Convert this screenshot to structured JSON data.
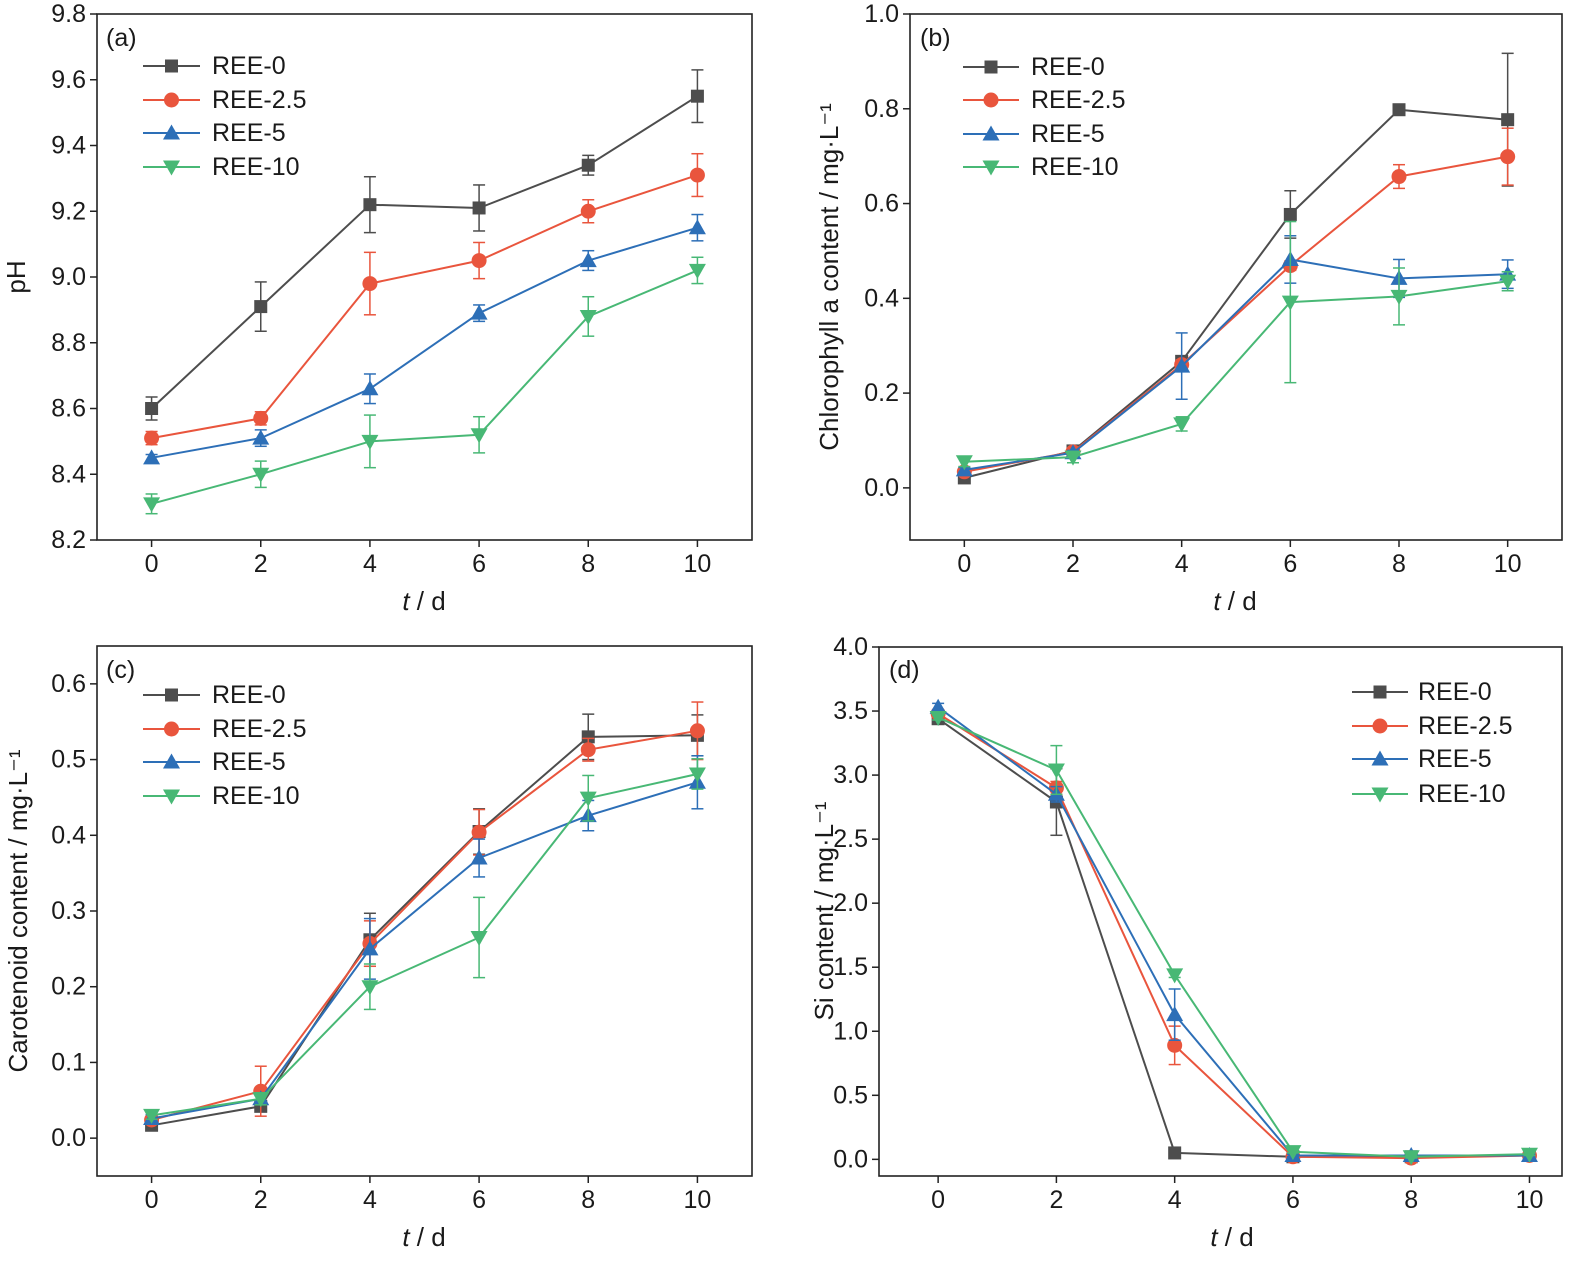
{
  "chart_data": [
    {
      "panel_label": "(a)",
      "type": "line",
      "x": [
        0,
        2,
        4,
        6,
        8,
        10
      ],
      "xticks": [
        "0",
        "2",
        "4",
        "6",
        "8",
        "10"
      ],
      "xlim": [
        -1,
        11
      ],
      "xlabel": {
        "variable": "t",
        "unit": " / d"
      },
      "ylabel": "pH",
      "yticks": [
        "8.2",
        "8.4",
        "8.6",
        "8.8",
        "9.0",
        "9.2",
        "9.4",
        "9.6",
        "9.8"
      ],
      "ylim": [
        8.2,
        9.8
      ],
      "grid": false,
      "legend": "top-left",
      "series": [
        {
          "name": "REE-0",
          "marker": "square",
          "color": "#4d4d4d",
          "values": [
            8.6,
            8.91,
            9.22,
            9.21,
            9.34,
            9.55
          ],
          "errors": [
            0.035,
            0.075,
            0.085,
            0.07,
            0.03,
            0.08
          ]
        },
        {
          "name": "REE-2.5",
          "marker": "circle",
          "color": "#e9553d",
          "values": [
            8.51,
            8.57,
            8.98,
            9.05,
            9.2,
            9.31
          ],
          "errors": [
            0.02,
            0.02,
            0.095,
            0.055,
            0.035,
            0.065
          ]
        },
        {
          "name": "REE-5",
          "marker": "triangle-up",
          "color": "#2d6fb7",
          "values": [
            8.45,
            8.51,
            8.66,
            8.89,
            9.05,
            9.15
          ],
          "errors": [
            0.01,
            0.025,
            0.045,
            0.025,
            0.03,
            0.04
          ]
        },
        {
          "name": "REE-10",
          "marker": "triangle-down",
          "color": "#48b875",
          "values": [
            8.31,
            8.4,
            8.5,
            8.52,
            8.88,
            9.02
          ],
          "errors": [
            0.03,
            0.04,
            0.08,
            0.055,
            0.06,
            0.04
          ]
        }
      ]
    },
    {
      "panel_label": "(b)",
      "type": "line",
      "x": [
        0,
        2,
        4,
        6,
        8,
        10
      ],
      "xticks": [
        "0",
        "2",
        "4",
        "6",
        "8",
        "10"
      ],
      "xlim": [
        -1,
        11
      ],
      "xlabel": {
        "variable": "t",
        "unit": " / d"
      },
      "ylabel": "Chlorophyll a content / mg·L⁻¹",
      "yticks": [
        "0.0",
        "0.2",
        "0.4",
        "0.6",
        "0.8",
        "1.0"
      ],
      "ylim": [
        -0.11,
        1.0
      ],
      "grid": false,
      "legend": "top-left",
      "series": [
        {
          "name": "REE-0",
          "marker": "square",
          "color": "#4d4d4d",
          "values": [
            0.021,
            0.078,
            0.267,
            0.577,
            0.798,
            0.777
          ],
          "errors": [
            0.005,
            0.005,
            0.01,
            0.05,
            0.005,
            0.14
          ]
        },
        {
          "name": "REE-2.5",
          "marker": "circle",
          "color": "#e9553d",
          "values": [
            0.034,
            0.076,
            0.26,
            0.469,
            0.657,
            0.699
          ],
          "errors": [
            0.005,
            0.005,
            0.01,
            0.01,
            0.025,
            0.06
          ]
        },
        {
          "name": "REE-5",
          "marker": "triangle-up",
          "color": "#2d6fb7",
          "values": [
            0.038,
            0.074,
            0.257,
            0.482,
            0.442,
            0.451
          ],
          "errors": [
            0.005,
            0.005,
            0.07,
            0.05,
            0.04,
            0.03
          ]
        },
        {
          "name": "REE-10",
          "marker": "triangle-down",
          "color": "#48b875",
          "values": [
            0.055,
            0.065,
            0.135,
            0.392,
            0.404,
            0.436
          ],
          "errors": [
            0.01,
            0.012,
            0.015,
            0.17,
            0.06,
            0.02
          ]
        }
      ]
    },
    {
      "panel_label": "(c)",
      "type": "line",
      "x": [
        0,
        2,
        4,
        6,
        8,
        10
      ],
      "xticks": [
        "0",
        "2",
        "4",
        "6",
        "8",
        "10"
      ],
      "xlim": [
        -1,
        11
      ],
      "xlabel": {
        "variable": "t",
        "unit": " / d"
      },
      "ylabel": "Carotenoid content / mg·L⁻¹",
      "yticks": [
        "0.0",
        "0.1",
        "0.2",
        "0.3",
        "0.4",
        "0.5",
        "0.6"
      ],
      "ylim": [
        -0.05,
        0.65
      ],
      "grid": false,
      "legend": "top-left",
      "series": [
        {
          "name": "REE-0",
          "marker": "square",
          "color": "#4d4d4d",
          "values": [
            0.017,
            0.042,
            0.262,
            0.405,
            0.53,
            0.532
          ],
          "errors": [
            0.005,
            0.005,
            0.035,
            0.03,
            0.03,
            0.027
          ]
        },
        {
          "name": "REE-2.5",
          "marker": "circle",
          "color": "#e9553d",
          "values": [
            0.024,
            0.062,
            0.257,
            0.404,
            0.513,
            0.538
          ],
          "errors": [
            0.005,
            0.033,
            0.03,
            0.03,
            0.015,
            0.038
          ]
        },
        {
          "name": "REE-5",
          "marker": "triangle-up",
          "color": "#2d6fb7",
          "values": [
            0.026,
            0.052,
            0.25,
            0.37,
            0.426,
            0.47
          ],
          "errors": [
            0.005,
            0.005,
            0.04,
            0.025,
            0.02,
            0.035
          ]
        },
        {
          "name": "REE-10",
          "marker": "triangle-down",
          "color": "#48b875",
          "values": [
            0.03,
            0.052,
            0.2,
            0.265,
            0.449,
            0.481
          ],
          "errors": [
            0.005,
            0.008,
            0.03,
            0.053,
            0.03,
            0.02
          ]
        }
      ]
    },
    {
      "panel_label": "(d)",
      "type": "line",
      "x": [
        0,
        2,
        4,
        6,
        8,
        10
      ],
      "xticks": [
        "0",
        "2",
        "4",
        "6",
        "8",
        "10"
      ],
      "xlim": [
        -1,
        10.55
      ],
      "xlabel": {
        "variable": "t",
        "unit": " / d"
      },
      "ylabel": "Si content / mg·L⁻¹",
      "yticks": [
        "0.0",
        "0.5",
        "1.0",
        "1.5",
        "2.0",
        "2.5",
        "3.0",
        "3.5",
        "4.0"
      ],
      "ylim": [
        -0.13,
        4.0
      ],
      "grid": false,
      "legend": "top-right",
      "series": [
        {
          "name": "REE-0",
          "marker": "square",
          "color": "#4d4d4d",
          "values": [
            3.44,
            2.79,
            0.05,
            0.02,
            0.02,
            0.03
          ],
          "errors": [
            0.02,
            0.26,
            0.01,
            0.01,
            0.01,
            0.01
          ]
        },
        {
          "name": "REE-2.5",
          "marker": "circle",
          "color": "#e9553d",
          "values": [
            3.48,
            2.9,
            0.89,
            0.02,
            0.01,
            0.03
          ],
          "errors": [
            0.03,
            0.05,
            0.15,
            0.01,
            0.01,
            0.01
          ]
        },
        {
          "name": "REE-5",
          "marker": "triangle-up",
          "color": "#2d6fb7",
          "values": [
            3.53,
            2.85,
            1.13,
            0.03,
            0.03,
            0.03
          ],
          "errors": [
            0.03,
            0.06,
            0.2,
            0.01,
            0.02,
            0.01
          ]
        },
        {
          "name": "REE-10",
          "marker": "triangle-down",
          "color": "#48b875",
          "values": [
            3.45,
            3.04,
            1.44,
            0.06,
            0.02,
            0.04
          ],
          "errors": [
            0.02,
            0.19,
            0.02,
            0.01,
            0.01,
            0.01
          ]
        }
      ]
    }
  ]
}
